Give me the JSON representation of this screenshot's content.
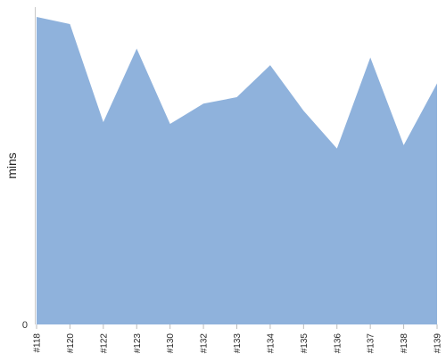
{
  "chart_data": {
    "type": "area",
    "title": "",
    "xlabel": "",
    "ylabel": "mins",
    "categories": [
      "#118",
      "#120",
      "#122",
      "#123",
      "#130",
      "#132",
      "#133",
      "#134",
      "#135",
      "#136",
      "#137",
      "#138",
      "#139"
    ],
    "series": [
      {
        "values": [
          100,
          97.7,
          65.8,
          89.7,
          65.2,
          71.8,
          73.9,
          84.3,
          69.5,
          57.2,
          86.8,
          58.3,
          78.4
        ]
      }
    ],
    "ylim": [
      0,
      100
    ],
    "yticks": [
      0
    ],
    "grid": false,
    "legend": "none",
    "colors": {
      "area_fill": "#8fb2dc",
      "axis": "#c8c8c8"
    }
  }
}
